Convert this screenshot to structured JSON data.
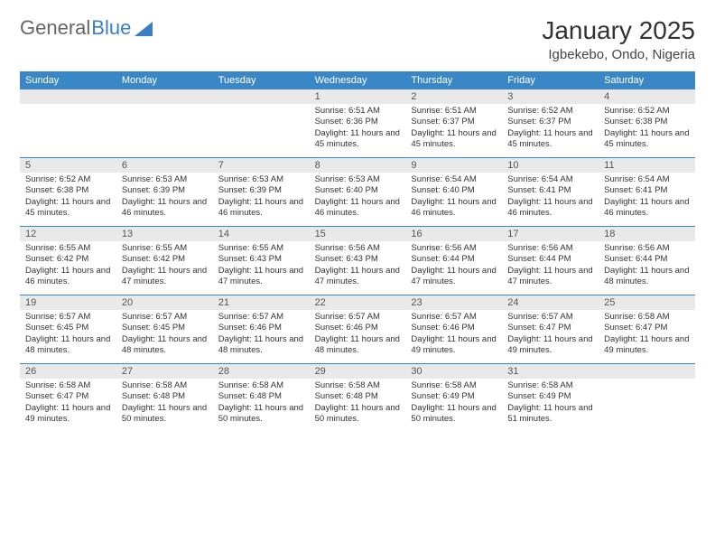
{
  "logo": {
    "text1": "General",
    "text2": "Blue"
  },
  "title": "January 2025",
  "location": "Igbekebo, Ondo, Nigeria",
  "colors": {
    "header_bg": "#3a87c7",
    "header_text": "#ffffff",
    "daynum_bg": "#e9e9e9",
    "rule": "#3a87c7",
    "logo_blue": "#3a7fc4"
  },
  "day_names": [
    "Sunday",
    "Monday",
    "Tuesday",
    "Wednesday",
    "Thursday",
    "Friday",
    "Saturday"
  ],
  "weeks": [
    {
      "nums": [
        "",
        "",
        "",
        "1",
        "2",
        "3",
        "4"
      ],
      "cells": [
        "",
        "",
        "",
        "Sunrise: 6:51 AM\nSunset: 6:36 PM\nDaylight: 11 hours and 45 minutes.",
        "Sunrise: 6:51 AM\nSunset: 6:37 PM\nDaylight: 11 hours and 45 minutes.",
        "Sunrise: 6:52 AM\nSunset: 6:37 PM\nDaylight: 11 hours and 45 minutes.",
        "Sunrise: 6:52 AM\nSunset: 6:38 PM\nDaylight: 11 hours and 45 minutes."
      ]
    },
    {
      "nums": [
        "5",
        "6",
        "7",
        "8",
        "9",
        "10",
        "11"
      ],
      "cells": [
        "Sunrise: 6:52 AM\nSunset: 6:38 PM\nDaylight: 11 hours and 45 minutes.",
        "Sunrise: 6:53 AM\nSunset: 6:39 PM\nDaylight: 11 hours and 46 minutes.",
        "Sunrise: 6:53 AM\nSunset: 6:39 PM\nDaylight: 11 hours and 46 minutes.",
        "Sunrise: 6:53 AM\nSunset: 6:40 PM\nDaylight: 11 hours and 46 minutes.",
        "Sunrise: 6:54 AM\nSunset: 6:40 PM\nDaylight: 11 hours and 46 minutes.",
        "Sunrise: 6:54 AM\nSunset: 6:41 PM\nDaylight: 11 hours and 46 minutes.",
        "Sunrise: 6:54 AM\nSunset: 6:41 PM\nDaylight: 11 hours and 46 minutes."
      ]
    },
    {
      "nums": [
        "12",
        "13",
        "14",
        "15",
        "16",
        "17",
        "18"
      ],
      "cells": [
        "Sunrise: 6:55 AM\nSunset: 6:42 PM\nDaylight: 11 hours and 46 minutes.",
        "Sunrise: 6:55 AM\nSunset: 6:42 PM\nDaylight: 11 hours and 47 minutes.",
        "Sunrise: 6:55 AM\nSunset: 6:43 PM\nDaylight: 11 hours and 47 minutes.",
        "Sunrise: 6:56 AM\nSunset: 6:43 PM\nDaylight: 11 hours and 47 minutes.",
        "Sunrise: 6:56 AM\nSunset: 6:44 PM\nDaylight: 11 hours and 47 minutes.",
        "Sunrise: 6:56 AM\nSunset: 6:44 PM\nDaylight: 11 hours and 47 minutes.",
        "Sunrise: 6:56 AM\nSunset: 6:44 PM\nDaylight: 11 hours and 48 minutes."
      ]
    },
    {
      "nums": [
        "19",
        "20",
        "21",
        "22",
        "23",
        "24",
        "25"
      ],
      "cells": [
        "Sunrise: 6:57 AM\nSunset: 6:45 PM\nDaylight: 11 hours and 48 minutes.",
        "Sunrise: 6:57 AM\nSunset: 6:45 PM\nDaylight: 11 hours and 48 minutes.",
        "Sunrise: 6:57 AM\nSunset: 6:46 PM\nDaylight: 11 hours and 48 minutes.",
        "Sunrise: 6:57 AM\nSunset: 6:46 PM\nDaylight: 11 hours and 48 minutes.",
        "Sunrise: 6:57 AM\nSunset: 6:46 PM\nDaylight: 11 hours and 49 minutes.",
        "Sunrise: 6:57 AM\nSunset: 6:47 PM\nDaylight: 11 hours and 49 minutes.",
        "Sunrise: 6:58 AM\nSunset: 6:47 PM\nDaylight: 11 hours and 49 minutes."
      ]
    },
    {
      "nums": [
        "26",
        "27",
        "28",
        "29",
        "30",
        "31",
        ""
      ],
      "cells": [
        "Sunrise: 6:58 AM\nSunset: 6:47 PM\nDaylight: 11 hours and 49 minutes.",
        "Sunrise: 6:58 AM\nSunset: 6:48 PM\nDaylight: 11 hours and 50 minutes.",
        "Sunrise: 6:58 AM\nSunset: 6:48 PM\nDaylight: 11 hours and 50 minutes.",
        "Sunrise: 6:58 AM\nSunset: 6:48 PM\nDaylight: 11 hours and 50 minutes.",
        "Sunrise: 6:58 AM\nSunset: 6:49 PM\nDaylight: 11 hours and 50 minutes.",
        "Sunrise: 6:58 AM\nSunset: 6:49 PM\nDaylight: 11 hours and 51 minutes.",
        ""
      ]
    }
  ]
}
